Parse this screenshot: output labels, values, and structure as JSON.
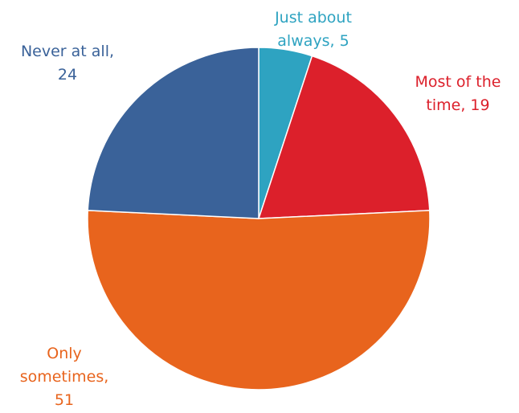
{
  "chart_data": {
    "type": "pie",
    "slices": [
      {
        "label": "Just about always",
        "value": 5,
        "color": "#2ea3c1",
        "label_lines": [
          "Just about",
          "always, 5"
        ]
      },
      {
        "label": "Most of the time",
        "value": 19,
        "color": "#dc202b",
        "label_lines": [
          "Most of the",
          "time, 19"
        ]
      },
      {
        "label": "Only sometimes",
        "value": 51,
        "color": "#e8641d",
        "label_lines": [
          "Only",
          "sometimes,",
          "51"
        ]
      },
      {
        "label": "Never at all",
        "value": 24,
        "color": "#3a6299",
        "label_lines": [
          "Never at all,",
          "24"
        ]
      }
    ],
    "start_angle": "12 o'clock",
    "direction": "clockwise",
    "legend": "none",
    "data_labels": "outside"
  }
}
